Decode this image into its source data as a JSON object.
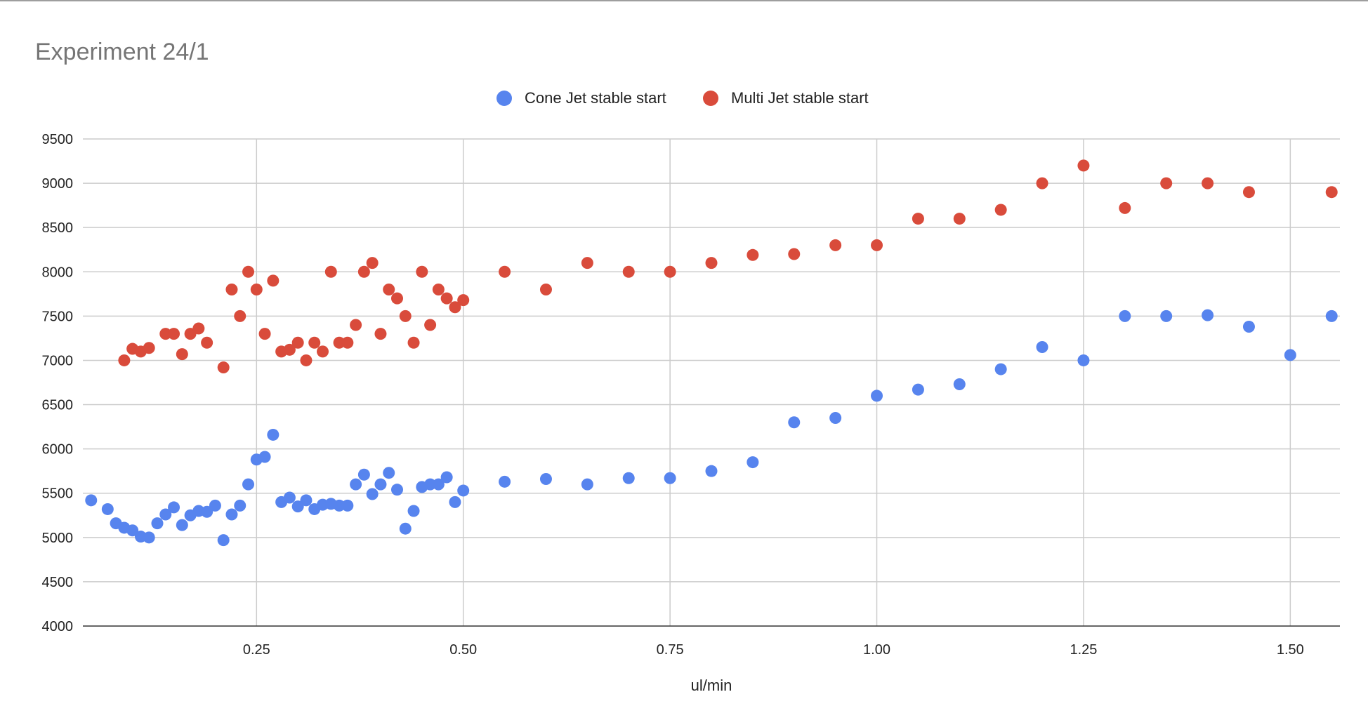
{
  "chart_data": {
    "type": "scatter",
    "title": "Experiment 24/1",
    "xlabel": "ul/min",
    "ylabel": "",
    "xlim": [
      0.04,
      1.56
    ],
    "ylim": [
      4000,
      9500
    ],
    "xticks": [
      0.25,
      0.5,
      0.75,
      1.0,
      1.25,
      1.5
    ],
    "xtick_labels": [
      "0.25",
      "0.50",
      "0.75",
      "1.00",
      "1.25",
      "1.50"
    ],
    "yticks": [
      4000,
      4500,
      5000,
      5500,
      6000,
      6500,
      7000,
      7500,
      8000,
      8500,
      9000,
      9500
    ],
    "ytick_labels": [
      "4000",
      "4500",
      "5000",
      "5500",
      "6000",
      "6500",
      "7000",
      "7500",
      "8000",
      "8500",
      "9000",
      "9500"
    ],
    "grid": true,
    "legend_position": "top-center",
    "series": [
      {
        "name": "Cone Jet stable start",
        "color": "#5784ee",
        "points": [
          [
            0.05,
            5420
          ],
          [
            0.07,
            5320
          ],
          [
            0.08,
            5160
          ],
          [
            0.09,
            5110
          ],
          [
            0.1,
            5080
          ],
          [
            0.11,
            5010
          ],
          [
            0.12,
            5000
          ],
          [
            0.13,
            5160
          ],
          [
            0.14,
            5260
          ],
          [
            0.15,
            5340
          ],
          [
            0.16,
            5140
          ],
          [
            0.17,
            5250
          ],
          [
            0.18,
            5300
          ],
          [
            0.19,
            5290
          ],
          [
            0.2,
            5360
          ],
          [
            0.21,
            4970
          ],
          [
            0.22,
            5260
          ],
          [
            0.23,
            5360
          ],
          [
            0.24,
            5600
          ],
          [
            0.25,
            5880
          ],
          [
            0.26,
            5910
          ],
          [
            0.27,
            6160
          ],
          [
            0.28,
            5400
          ],
          [
            0.29,
            5450
          ],
          [
            0.3,
            5350
          ],
          [
            0.31,
            5420
          ],
          [
            0.32,
            5320
          ],
          [
            0.33,
            5370
          ],
          [
            0.34,
            5380
          ],
          [
            0.35,
            5360
          ],
          [
            0.36,
            5360
          ],
          [
            0.37,
            5600
          ],
          [
            0.38,
            5710
          ],
          [
            0.39,
            5490
          ],
          [
            0.4,
            5600
          ],
          [
            0.41,
            5730
          ],
          [
            0.42,
            5540
          ],
          [
            0.43,
            5100
          ],
          [
            0.44,
            5300
          ],
          [
            0.45,
            5570
          ],
          [
            0.46,
            5600
          ],
          [
            0.47,
            5600
          ],
          [
            0.48,
            5680
          ],
          [
            0.49,
            5400
          ],
          [
            0.5,
            5530
          ],
          [
            0.55,
            5630
          ],
          [
            0.6,
            5660
          ],
          [
            0.65,
            5600
          ],
          [
            0.7,
            5670
          ],
          [
            0.75,
            5670
          ],
          [
            0.8,
            5750
          ],
          [
            0.85,
            5850
          ],
          [
            0.9,
            6300
          ],
          [
            0.95,
            6350
          ],
          [
            1.0,
            6600
          ],
          [
            1.05,
            6670
          ],
          [
            1.1,
            6730
          ],
          [
            1.15,
            6900
          ],
          [
            1.2,
            7150
          ],
          [
            1.25,
            7000
          ],
          [
            1.3,
            7500
          ],
          [
            1.35,
            7500
          ],
          [
            1.4,
            7510
          ],
          [
            1.45,
            7380
          ],
          [
            1.5,
            7060
          ],
          [
            1.55,
            7500
          ]
        ]
      },
      {
        "name": "Multi Jet stable start",
        "color": "#d94b3b",
        "points": [
          [
            0.09,
            7000
          ],
          [
            0.1,
            7130
          ],
          [
            0.11,
            7100
          ],
          [
            0.12,
            7140
          ],
          [
            0.14,
            7300
          ],
          [
            0.15,
            7300
          ],
          [
            0.16,
            7070
          ],
          [
            0.17,
            7300
          ],
          [
            0.18,
            7360
          ],
          [
            0.19,
            7200
          ],
          [
            0.21,
            6920
          ],
          [
            0.22,
            7800
          ],
          [
            0.23,
            7500
          ],
          [
            0.24,
            8000
          ],
          [
            0.25,
            7800
          ],
          [
            0.26,
            7300
          ],
          [
            0.27,
            7900
          ],
          [
            0.28,
            7100
          ],
          [
            0.29,
            7120
          ],
          [
            0.3,
            7200
          ],
          [
            0.31,
            7000
          ],
          [
            0.32,
            7200
          ],
          [
            0.33,
            7100
          ],
          [
            0.34,
            8000
          ],
          [
            0.35,
            7200
          ],
          [
            0.36,
            7200
          ],
          [
            0.37,
            7400
          ],
          [
            0.38,
            8000
          ],
          [
            0.39,
            8100
          ],
          [
            0.4,
            7300
          ],
          [
            0.41,
            7800
          ],
          [
            0.42,
            7700
          ],
          [
            0.43,
            7500
          ],
          [
            0.44,
            7200
          ],
          [
            0.45,
            8000
          ],
          [
            0.46,
            7400
          ],
          [
            0.47,
            7800
          ],
          [
            0.48,
            7700
          ],
          [
            0.49,
            7600
          ],
          [
            0.5,
            7680
          ],
          [
            0.55,
            8000
          ],
          [
            0.6,
            7800
          ],
          [
            0.65,
            8100
          ],
          [
            0.7,
            8000
          ],
          [
            0.75,
            8000
          ],
          [
            0.8,
            8100
          ],
          [
            0.85,
            8190
          ],
          [
            0.9,
            8200
          ],
          [
            0.95,
            8300
          ],
          [
            1.0,
            8300
          ],
          [
            1.05,
            8600
          ],
          [
            1.1,
            8600
          ],
          [
            1.15,
            8700
          ],
          [
            1.2,
            9000
          ],
          [
            1.25,
            9200
          ],
          [
            1.3,
            8720
          ],
          [
            1.35,
            9000
          ],
          [
            1.4,
            9000
          ],
          [
            1.45,
            8900
          ],
          [
            1.55,
            8900
          ]
        ]
      }
    ]
  }
}
